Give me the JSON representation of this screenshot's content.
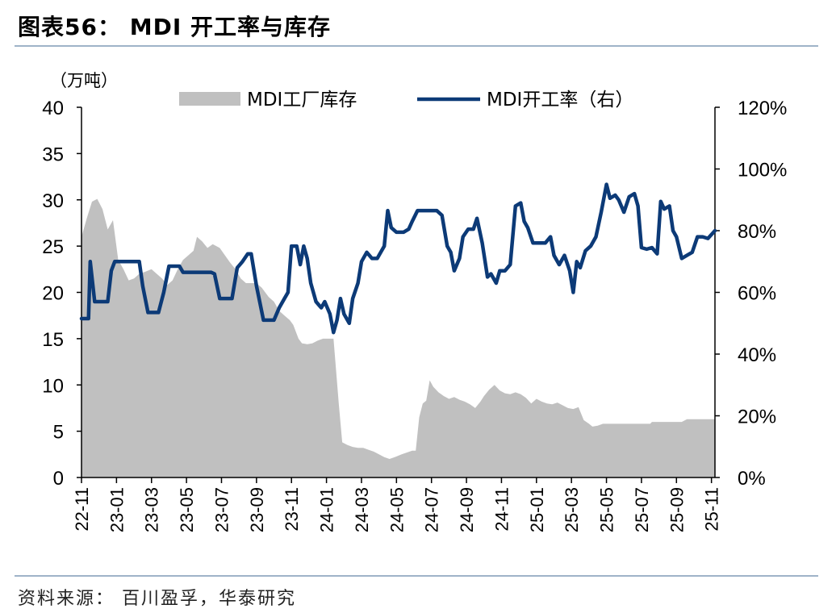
{
  "header": {
    "title": "图表56：  MDI 开工率与库存"
  },
  "footer": {
    "source": "资料来源：  百川盈孚，华泰研究"
  },
  "colors": {
    "inventory_area": "#c0c0c0",
    "rate_line": "#0c3a77",
    "axis": "#000000",
    "rule": "#9fb3c8"
  },
  "chart_data": {
    "type": "area",
    "left_unit": "（万吨）",
    "legend": {
      "placement": "top",
      "items": [
        {
          "name": "MDI工厂库存",
          "kind": "area"
        },
        {
          "name": "MDI开工率（右）",
          "kind": "line"
        }
      ]
    },
    "y_left": {
      "range": [
        0,
        40
      ],
      "ticks": [
        "0",
        "5",
        "10",
        "15",
        "20",
        "25",
        "30",
        "35",
        "40"
      ]
    },
    "y_right": {
      "range": [
        0,
        120
      ],
      "ticks": [
        "0%",
        "20%",
        "40%",
        "60%",
        "80%",
        "100%",
        "120%"
      ]
    },
    "x_ticks": [
      "22-11",
      "23-01",
      "23-03",
      "23-05",
      "23-07",
      "23-09",
      "23-11",
      "24-01",
      "24-03",
      "24-05",
      "24-07",
      "24-09",
      "24-11",
      "25-01",
      "25-03",
      "25-05",
      "25-07",
      "25-09",
      "25-11"
    ],
    "x_range_months": [
      0,
      36.2
    ],
    "series": [
      {
        "name": "MDI工厂库存",
        "axis": "left",
        "points": [
          [
            0.0,
            26.0
          ],
          [
            0.3,
            28.0
          ],
          [
            0.6,
            29.8
          ],
          [
            0.9,
            30.1
          ],
          [
            1.2,
            29.0
          ],
          [
            1.5,
            26.8
          ],
          [
            1.8,
            27.8
          ],
          [
            2.1,
            23.5
          ],
          [
            2.4,
            22.5
          ],
          [
            2.7,
            21.3
          ],
          [
            3.0,
            21.5
          ],
          [
            3.3,
            22.0
          ],
          [
            3.6,
            22.2
          ],
          [
            4.0,
            22.5
          ],
          [
            4.3,
            22.0
          ],
          [
            4.6,
            21.5
          ],
          [
            4.9,
            20.8
          ],
          [
            5.2,
            21.3
          ],
          [
            5.5,
            22.5
          ],
          [
            5.8,
            23.5
          ],
          [
            6.1,
            24.0
          ],
          [
            6.4,
            24.5
          ],
          [
            6.6,
            26.0
          ],
          [
            6.9,
            25.5
          ],
          [
            7.2,
            24.8
          ],
          [
            7.5,
            25.2
          ],
          [
            7.9,
            24.8
          ],
          [
            8.2,
            24.0
          ],
          [
            8.5,
            23.2
          ],
          [
            8.8,
            22.5
          ],
          [
            9.1,
            21.5
          ],
          [
            9.4,
            21.0
          ],
          [
            9.7,
            21.0
          ],
          [
            10.0,
            21.0
          ],
          [
            10.3,
            20.5
          ],
          [
            10.7,
            19.5
          ],
          [
            11.0,
            19.0
          ],
          [
            11.3,
            18.0
          ],
          [
            11.6,
            17.5
          ],
          [
            11.9,
            17.0
          ],
          [
            12.1,
            16.5
          ],
          [
            12.4,
            15.0
          ],
          [
            12.6,
            14.5
          ],
          [
            12.9,
            14.4
          ],
          [
            13.2,
            14.5
          ],
          [
            13.5,
            14.8
          ],
          [
            13.8,
            15.0
          ],
          [
            14.2,
            15.0
          ],
          [
            14.4,
            15.0
          ],
          [
            14.7,
            8.0
          ],
          [
            14.9,
            3.8
          ],
          [
            15.2,
            3.5
          ],
          [
            15.5,
            3.3
          ],
          [
            15.8,
            3.2
          ],
          [
            16.1,
            3.2
          ],
          [
            16.4,
            3.0
          ],
          [
            16.7,
            2.8
          ],
          [
            17.0,
            2.5
          ],
          [
            17.3,
            2.2
          ],
          [
            17.6,
            2.0
          ],
          [
            17.9,
            2.2
          ],
          [
            18.3,
            2.5
          ],
          [
            18.6,
            2.7
          ],
          [
            18.9,
            2.9
          ],
          [
            19.1,
            2.9
          ],
          [
            19.3,
            6.5
          ],
          [
            19.5,
            8.0
          ],
          [
            19.7,
            8.3
          ],
          [
            19.9,
            10.5
          ],
          [
            20.1,
            9.8
          ],
          [
            20.4,
            9.2
          ],
          [
            20.7,
            8.8
          ],
          [
            21.0,
            8.5
          ],
          [
            21.3,
            8.7
          ],
          [
            21.6,
            8.4
          ],
          [
            21.9,
            8.2
          ],
          [
            22.2,
            7.9
          ],
          [
            22.5,
            7.5
          ],
          [
            22.8,
            8.2
          ],
          [
            23.0,
            8.8
          ],
          [
            23.3,
            9.5
          ],
          [
            23.6,
            10.0
          ],
          [
            23.9,
            9.4
          ],
          [
            24.2,
            9.1
          ],
          [
            24.5,
            9.0
          ],
          [
            24.8,
            9.2
          ],
          [
            25.1,
            9.0
          ],
          [
            25.4,
            8.6
          ],
          [
            25.7,
            8.0
          ],
          [
            26.0,
            8.5
          ],
          [
            26.3,
            8.2
          ],
          [
            26.6,
            8.0
          ],
          [
            26.9,
            7.9
          ],
          [
            27.2,
            8.1
          ],
          [
            27.5,
            7.8
          ],
          [
            27.8,
            7.5
          ],
          [
            28.1,
            7.4
          ],
          [
            28.4,
            7.6
          ],
          [
            28.7,
            6.2
          ],
          [
            29.0,
            5.8
          ],
          [
            29.2,
            5.5
          ],
          [
            29.5,
            5.6
          ],
          [
            29.8,
            5.8
          ],
          [
            30.1,
            5.8
          ],
          [
            32.0,
            5.8
          ],
          [
            32.5,
            5.8
          ],
          [
            32.6,
            6.0
          ],
          [
            33.5,
            6.0
          ],
          [
            34.3,
            6.0
          ],
          [
            34.6,
            6.3
          ],
          [
            35.6,
            6.3
          ],
          [
            36.2,
            6.3
          ]
        ]
      },
      {
        "name": "MDI开工率（右）",
        "axis": "right",
        "points": [
          [
            0.0,
            51.5
          ],
          [
            0.4,
            51.5
          ],
          [
            0.5,
            70.0
          ],
          [
            0.75,
            57.0
          ],
          [
            1.1,
            57.0
          ],
          [
            1.5,
            57.0
          ],
          [
            1.7,
            67.0
          ],
          [
            1.9,
            70.0
          ],
          [
            3.0,
            70.0
          ],
          [
            3.3,
            70.0
          ],
          [
            3.5,
            62.0
          ],
          [
            3.8,
            53.5
          ],
          [
            4.4,
            53.5
          ],
          [
            4.7,
            60.0
          ],
          [
            5.0,
            68.5
          ],
          [
            5.6,
            68.5
          ],
          [
            5.8,
            66.5
          ],
          [
            7.4,
            66.5
          ],
          [
            7.6,
            66.0
          ],
          [
            7.9,
            58.0
          ],
          [
            8.6,
            58.0
          ],
          [
            8.9,
            68.0
          ],
          [
            9.2,
            70.0
          ],
          [
            9.5,
            72.5
          ],
          [
            9.7,
            72.5
          ],
          [
            10.0,
            62.0
          ],
          [
            10.4,
            51.0
          ],
          [
            11.0,
            51.0
          ],
          [
            11.3,
            55.0
          ],
          [
            11.6,
            58.0
          ],
          [
            11.8,
            60.0
          ],
          [
            12.0,
            75.0
          ],
          [
            12.3,
            75.0
          ],
          [
            12.5,
            69.0
          ],
          [
            12.7,
            75.0
          ],
          [
            12.9,
            71.0
          ],
          [
            13.1,
            63.0
          ],
          [
            13.4,
            57.0
          ],
          [
            13.7,
            55.0
          ],
          [
            13.9,
            57.0
          ],
          [
            14.2,
            53.0
          ],
          [
            14.4,
            47.0
          ],
          [
            14.6,
            51.0
          ],
          [
            14.8,
            58.0
          ],
          [
            15.0,
            53.0
          ],
          [
            15.3,
            50.0
          ],
          [
            15.5,
            58.0
          ],
          [
            15.8,
            63.0
          ],
          [
            16.0,
            70.0
          ],
          [
            16.3,
            73.0
          ],
          [
            16.6,
            71.0
          ],
          [
            16.9,
            71.0
          ],
          [
            17.1,
            73.0
          ],
          [
            17.3,
            75.0
          ],
          [
            17.5,
            86.5
          ],
          [
            17.7,
            81.0
          ],
          [
            18.0,
            79.5
          ],
          [
            18.4,
            79.5
          ],
          [
            18.7,
            80.5
          ],
          [
            18.9,
            83.0
          ],
          [
            19.2,
            86.5
          ],
          [
            20.3,
            86.5
          ],
          [
            20.6,
            85.0
          ],
          [
            20.9,
            75.0
          ],
          [
            21.1,
            73.0
          ],
          [
            21.3,
            67.0
          ],
          [
            21.6,
            71.0
          ],
          [
            21.8,
            78.0
          ],
          [
            22.1,
            80.5
          ],
          [
            22.4,
            80.5
          ],
          [
            22.6,
            84.0
          ],
          [
            22.9,
            76.0
          ],
          [
            23.2,
            65.0
          ],
          [
            23.4,
            66.0
          ],
          [
            23.7,
            63.0
          ],
          [
            23.9,
            67.0
          ],
          [
            24.2,
            67.0
          ],
          [
            24.5,
            69.0
          ],
          [
            24.8,
            88.0
          ],
          [
            25.1,
            89.0
          ],
          [
            25.3,
            83.0
          ],
          [
            25.5,
            81.0
          ],
          [
            25.8,
            76.0
          ],
          [
            26.5,
            76.0
          ],
          [
            26.8,
            78.0
          ],
          [
            27.0,
            72.0
          ],
          [
            27.3,
            69.0
          ],
          [
            27.6,
            72.0
          ],
          [
            27.9,
            67.0
          ],
          [
            28.1,
            60.0
          ],
          [
            28.3,
            70.0
          ],
          [
            28.5,
            68.0
          ],
          [
            28.8,
            73.5
          ],
          [
            29.1,
            75.0
          ],
          [
            29.4,
            78.0
          ],
          [
            29.7,
            86.0
          ],
          [
            30.0,
            95.0
          ],
          [
            30.2,
            90.5
          ],
          [
            30.5,
            91.5
          ],
          [
            30.7,
            90.0
          ],
          [
            31.0,
            86.0
          ],
          [
            31.3,
            91.0
          ],
          [
            31.6,
            92.0
          ],
          [
            31.8,
            88.0
          ],
          [
            32.0,
            74.5
          ],
          [
            32.3,
            74.0
          ],
          [
            32.6,
            74.5
          ],
          [
            32.9,
            72.5
          ],
          [
            33.1,
            89.5
          ],
          [
            33.3,
            87.0
          ],
          [
            33.6,
            88.0
          ],
          [
            33.8,
            80.0
          ],
          [
            34.0,
            78.0
          ],
          [
            34.3,
            71.0
          ],
          [
            34.6,
            72.0
          ],
          [
            34.9,
            73.0
          ],
          [
            35.2,
            78.0
          ],
          [
            35.5,
            78.0
          ],
          [
            35.8,
            77.5
          ],
          [
            36.2,
            80.0
          ]
        ]
      }
    ]
  }
}
